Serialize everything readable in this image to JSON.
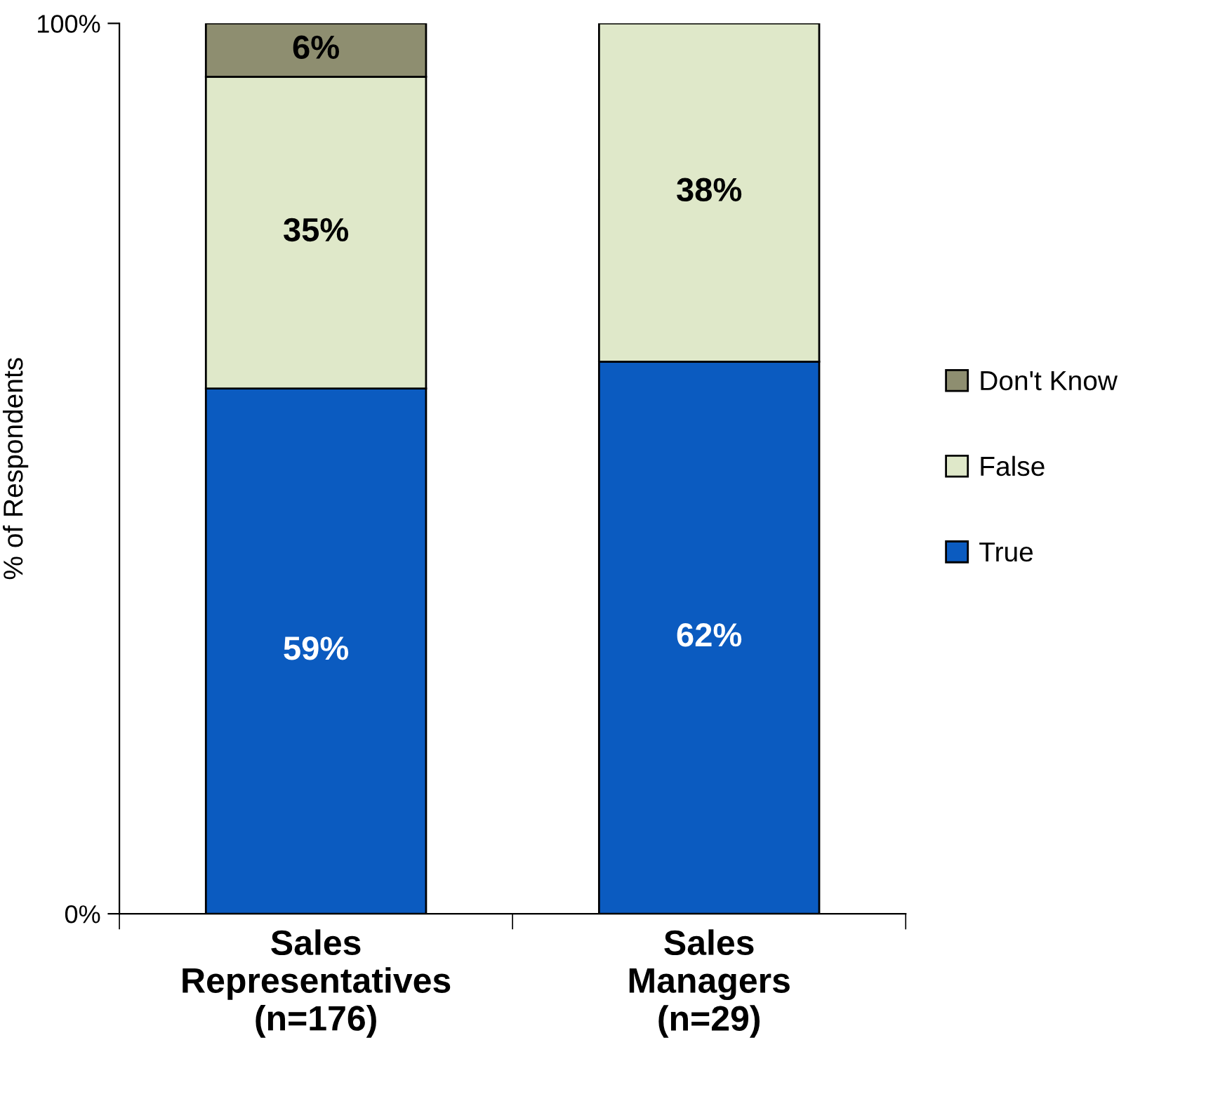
{
  "chart_data": {
    "type": "bar",
    "stacked": true,
    "ylabel": "% of Respondents",
    "categories": [
      "Sales\nRepresentatives\n(n=176)",
      "Sales\nManagers\n(n=29)"
    ],
    "series": [
      {
        "name": "True",
        "color": "#0b5bc0",
        "values": [
          59,
          62
        ],
        "value_labels": [
          "59%",
          "62%"
        ]
      },
      {
        "name": "False",
        "color": "#dfe8c9",
        "values": [
          35,
          38
        ],
        "value_labels": [
          "35%",
          "38%"
        ]
      },
      {
        "name": "Don't Know",
        "color": "#8e8e70",
        "values": [
          6,
          null
        ],
        "value_labels": [
          "6%",
          null
        ]
      }
    ],
    "ylim": [
      0,
      100
    ],
    "yticks": [
      {
        "value": 0,
        "label": "0%"
      },
      {
        "value": 100,
        "label": "100%"
      }
    ],
    "grid": false,
    "legend": "right"
  }
}
